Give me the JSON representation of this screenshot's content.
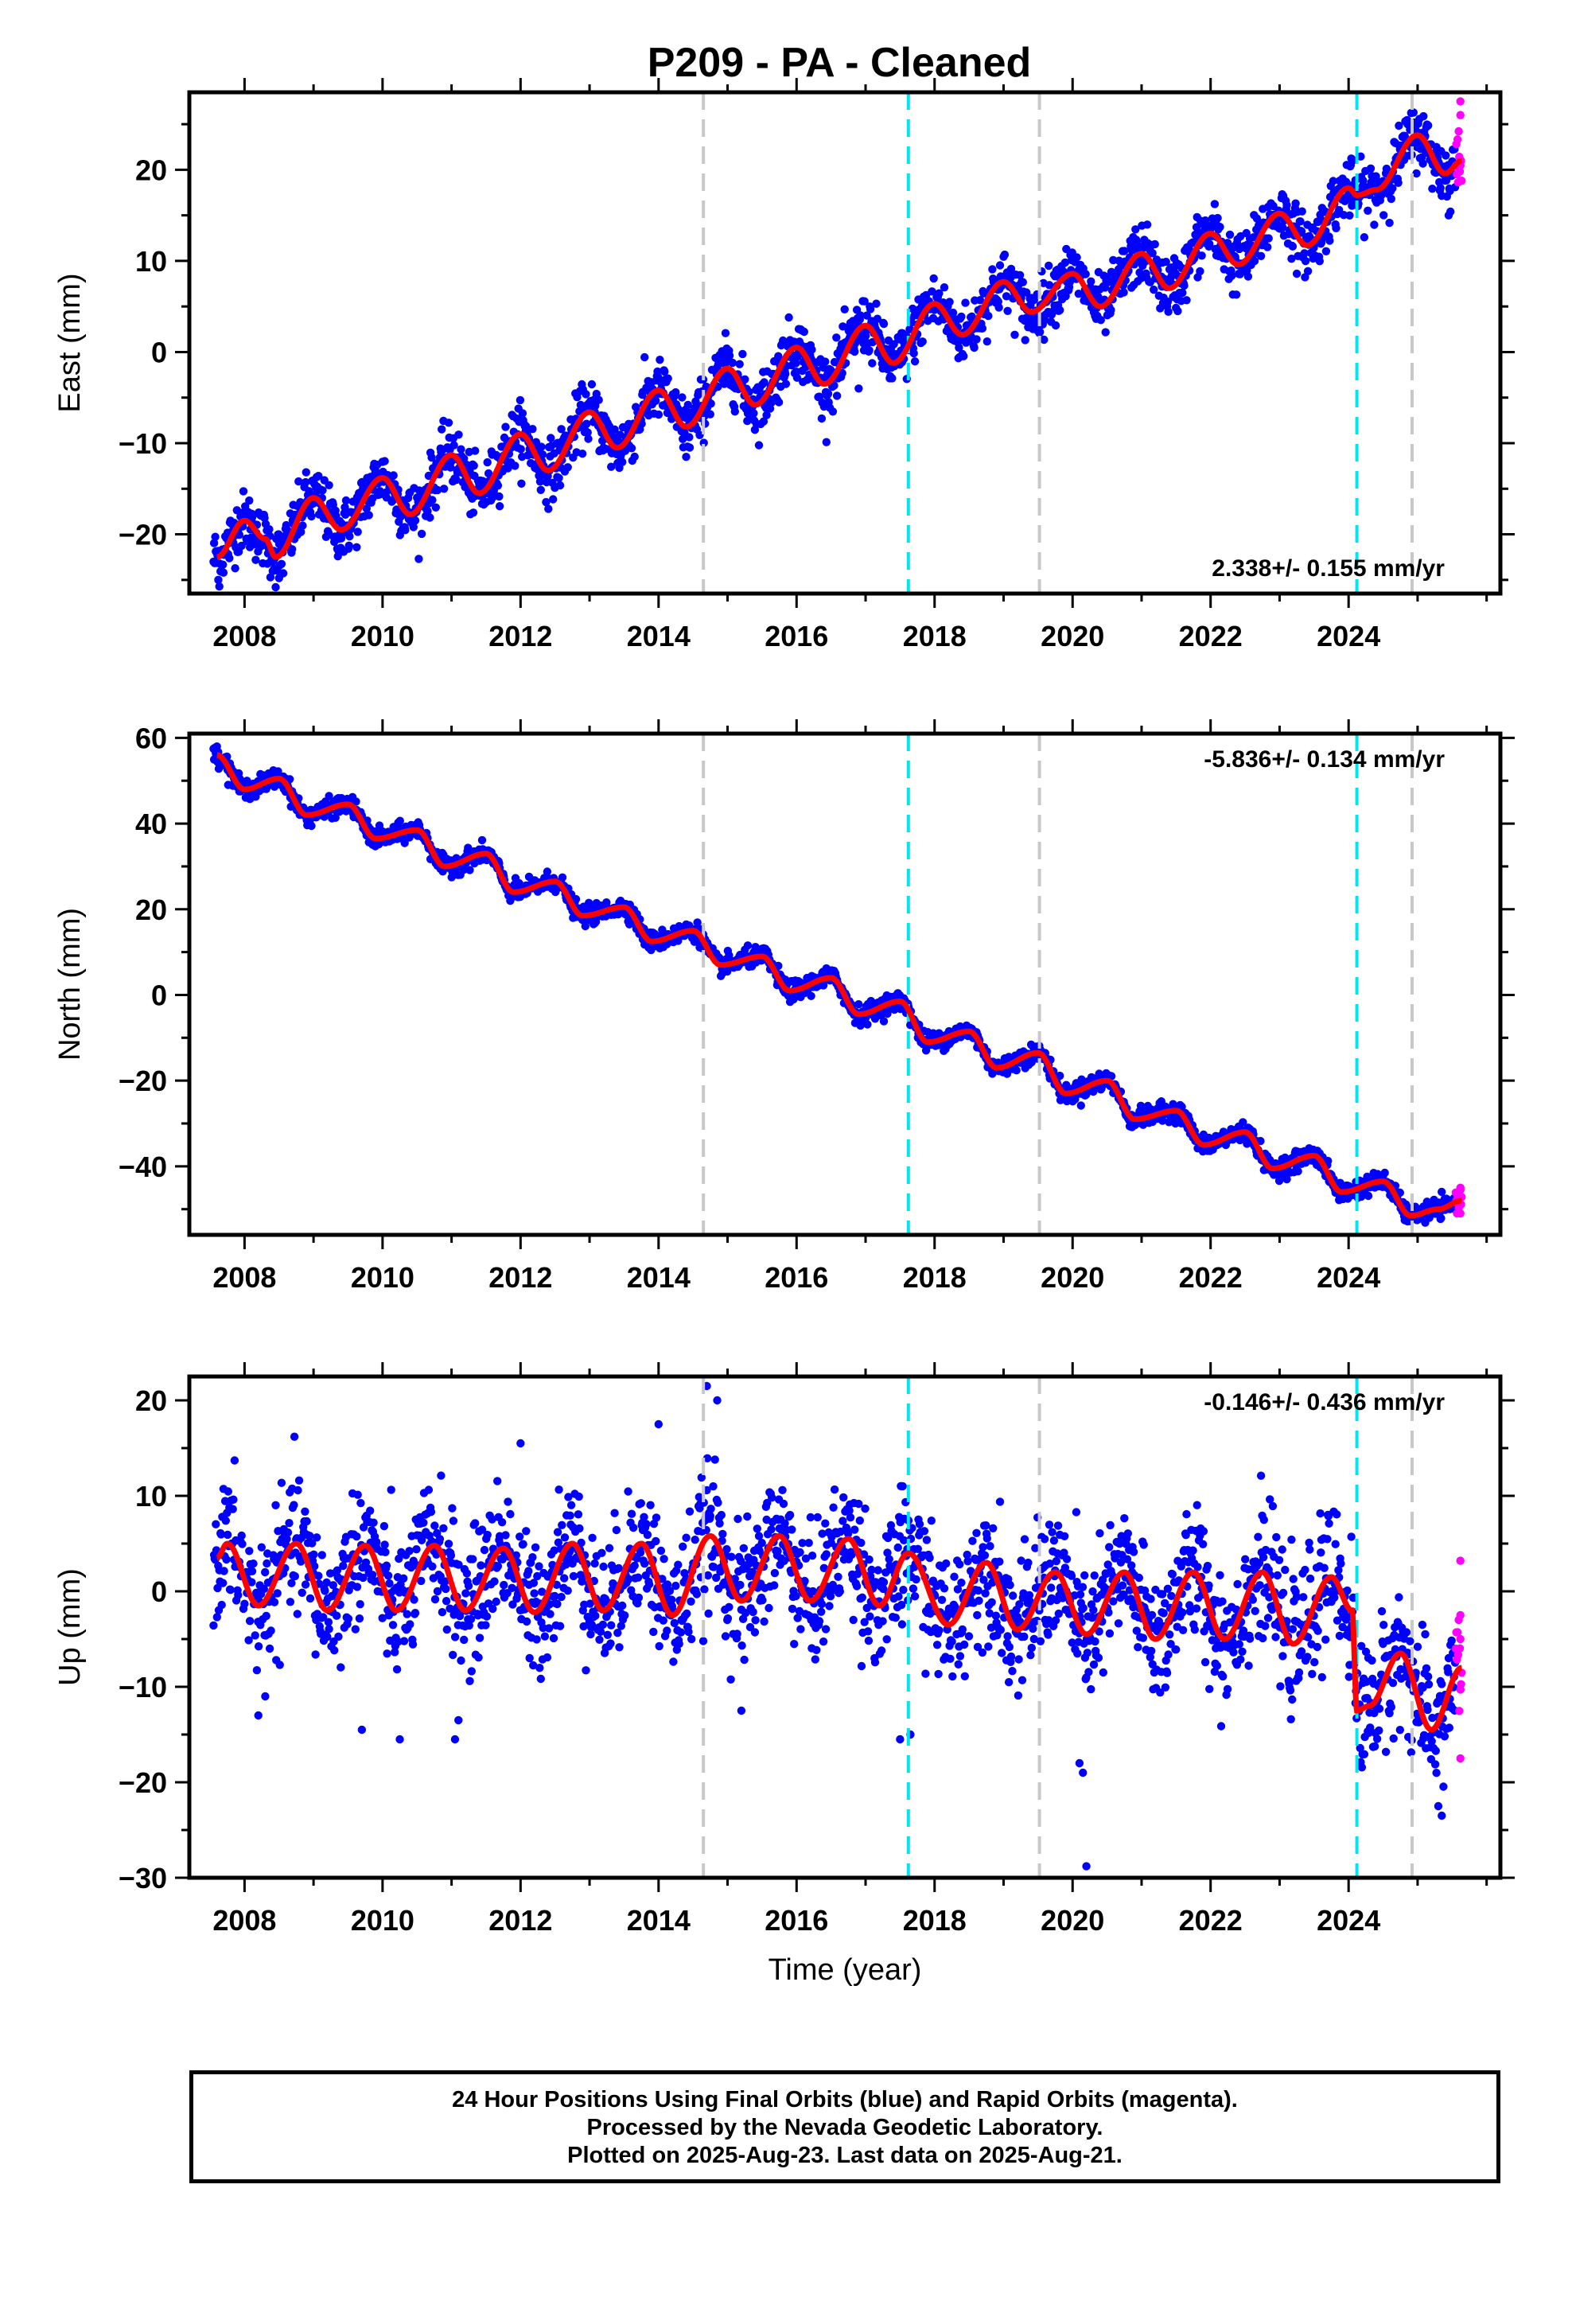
{
  "title": "P209  - PA - Cleaned",
  "colors": {
    "final_orbits": "#0000ff",
    "rapid_orbits": "#ff00ff",
    "model": "#ff0000",
    "event_antenna": "#c8c8c8",
    "event_earthquake": "#00e5ee"
  },
  "footer": {
    "line1": "24 Hour Positions Using Final Orbits (blue) and Rapid Orbits (magenta).",
    "line2": "Processed by the Nevada Geodetic Laboratory.",
    "line3": "Plotted on 2025-Aug-23. Last data on 2025-Aug-21."
  },
  "chart_data": [
    {
      "type": "scatter",
      "component": "east",
      "ylabel": "East (mm)",
      "xlabel": "",
      "rate_label": "2.338+/- 0.155 mm/yr",
      "xlim": [
        2007.2,
        2026.2
      ],
      "ylim": [
        -26.5,
        28.5
      ],
      "x_ticks": [
        2008,
        2010,
        2012,
        2014,
        2016,
        2018,
        2020,
        2022,
        2024
      ],
      "y_ticks": [
        -20,
        -10,
        0,
        10,
        20
      ],
      "data_start": 2007.55,
      "data_end": 2025.64,
      "rapid_start": 2025.55,
      "model": {
        "offset_at_start": -22.3,
        "trend_mm_per_yr": 2.338,
        "annual_amplitude": 2.3,
        "phase_year": 0.62,
        "steps": [
          {
            "year": 2024.12,
            "size": 0
          }
        ]
      },
      "model_curve": [
        [
          2007.6,
          -22.5
        ],
        [
          2008.0,
          -18.5
        ],
        [
          2008.3,
          -20.5
        ],
        [
          2008.45,
          -22.5
        ],
        [
          2009.0,
          -16.0
        ],
        [
          2009.4,
          -19.5
        ],
        [
          2010.0,
          -13.8
        ],
        [
          2010.4,
          -17.8
        ],
        [
          2011.0,
          -11.3
        ],
        [
          2011.4,
          -15.5
        ],
        [
          2012.0,
          -9.0
        ],
        [
          2012.4,
          -13.0
        ],
        [
          2013.0,
          -6.6
        ],
        [
          2013.4,
          -10.5
        ],
        [
          2014.0,
          -4.2
        ],
        [
          2014.4,
          -8.2
        ],
        [
          2015.0,
          -1.8
        ],
        [
          2015.4,
          -5.8
        ],
        [
          2016.0,
          0.5
        ],
        [
          2016.4,
          -3.5
        ],
        [
          2017.0,
          2.9
        ],
        [
          2017.4,
          -1.2
        ],
        [
          2018.0,
          5.3
        ],
        [
          2018.4,
          1.9
        ],
        [
          2019.0,
          7.7
        ],
        [
          2019.4,
          4.4
        ],
        [
          2020.0,
          8.6
        ],
        [
          2020.4,
          5.0
        ],
        [
          2021.0,
          10.8
        ],
        [
          2021.4,
          7.0
        ],
        [
          2022.0,
          13.0
        ],
        [
          2022.4,
          9.6
        ],
        [
          2023.0,
          15.2
        ],
        [
          2023.4,
          11.7
        ],
        [
          2024.0,
          18.0
        ],
        [
          2024.12,
          17.2
        ],
        [
          2024.4,
          17.8
        ],
        [
          2025.0,
          23.8
        ],
        [
          2025.4,
          19.6
        ],
        [
          2025.64,
          21.0
        ]
      ],
      "scatter_sigma": 1.6,
      "outliers": [
        [
          2007.62,
          -25.0
        ],
        [
          2008.5,
          -24.8
        ],
        [
          2014.4,
          -11.5
        ],
        [
          2016.9,
          -4.0
        ],
        [
          2025.45,
          15.0
        ],
        [
          2025.62,
          27.5
        ],
        [
          2025.62,
          26.0
        ]
      ]
    },
    {
      "type": "scatter",
      "component": "north",
      "ylabel": "North (mm)",
      "xlabel": "",
      "rate_label": "-5.836+/- 0.134 mm/yr",
      "xlim": [
        2007.2,
        2026.2
      ],
      "ylim": [
        -56,
        61
      ],
      "x_ticks": [
        2008,
        2010,
        2012,
        2014,
        2016,
        2018,
        2020,
        2022,
        2024
      ],
      "y_ticks": [
        -40,
        -20,
        0,
        20,
        40,
        60
      ],
      "data_start": 2007.55,
      "data_end": 2025.64,
      "rapid_start": 2025.55,
      "model": {
        "offset_at_start": 55.5,
        "trend_mm_per_yr": -5.836,
        "annual_amplitude": 1.8,
        "phase_year": 0.55,
        "steps": [
          {
            "year": 2024.12,
            "size": 0
          }
        ]
      },
      "model_curve": [
        [
          2007.6,
          56.0
        ],
        [
          2008.0,
          48.0
        ],
        [
          2008.5,
          50.5
        ],
        [
          2008.9,
          42.0
        ],
        [
          2009.5,
          44.5
        ],
        [
          2009.9,
          36.5
        ],
        [
          2010.5,
          38.5
        ],
        [
          2010.9,
          30.0
        ],
        [
          2011.5,
          33.0
        ],
        [
          2011.9,
          24.0
        ],
        [
          2012.5,
          26.5
        ],
        [
          2012.9,
          18.5
        ],
        [
          2013.5,
          20.5
        ],
        [
          2013.9,
          12.5
        ],
        [
          2014.5,
          15.0
        ],
        [
          2014.9,
          7.0
        ],
        [
          2015.5,
          9.0
        ],
        [
          2015.9,
          1.0
        ],
        [
          2016.5,
          4.0
        ],
        [
          2016.9,
          -4.5
        ],
        [
          2017.5,
          -1.5
        ],
        [
          2017.9,
          -11.0
        ],
        [
          2018.5,
          -8.5
        ],
        [
          2018.9,
          -17.0
        ],
        [
          2019.5,
          -13.5
        ],
        [
          2019.9,
          -23.0
        ],
        [
          2020.5,
          -20.0
        ],
        [
          2020.9,
          -29.0
        ],
        [
          2021.5,
          -27.0
        ],
        [
          2021.9,
          -35.0
        ],
        [
          2022.5,
          -32.0
        ],
        [
          2022.9,
          -40.5
        ],
        [
          2023.5,
          -37.5
        ],
        [
          2023.9,
          -46.0
        ],
        [
          2024.5,
          -43.5
        ],
        [
          2024.9,
          -51.5
        ],
        [
          2025.3,
          -50.0
        ],
        [
          2025.64,
          -48.0
        ]
      ],
      "scatter_sigma": 1.1,
      "outliers": [
        [
          2007.6,
          58.0
        ],
        [
          2025.62,
          -45.0
        ],
        [
          2025.62,
          -51.0
        ]
      ]
    },
    {
      "type": "scatter",
      "component": "up",
      "ylabel": "Up (mm)",
      "xlabel": "Time (year)",
      "rate_label": "-0.146+/- 0.436 mm/yr",
      "xlim": [
        2007.2,
        2026.2
      ],
      "ylim": [
        -30,
        22.5
      ],
      "x_ticks": [
        2008,
        2010,
        2012,
        2014,
        2016,
        2018,
        2020,
        2022,
        2024
      ],
      "y_ticks": [
        -30,
        -20,
        -10,
        0,
        10,
        20
      ],
      "data_start": 2007.55,
      "data_end": 2025.64,
      "rapid_start": 2025.55,
      "model": {
        "offset_at_start": 2.0,
        "trend_mm_per_yr": -0.146,
        "annual_amplitude": 3.6,
        "phase_year": 0.62,
        "steps": [
          {
            "year": 2024.12,
            "size": -9.5
          }
        ]
      },
      "model_curve": [
        [
          2007.6,
          3.5
        ],
        [
          2007.75,
          5.0
        ],
        [
          2008.2,
          -1.5
        ],
        [
          2008.75,
          5.0
        ],
        [
          2009.2,
          -2.0
        ],
        [
          2009.75,
          4.8
        ],
        [
          2010.2,
          -2.0
        ],
        [
          2010.75,
          4.8
        ],
        [
          2011.2,
          -2.0
        ],
        [
          2011.75,
          4.5
        ],
        [
          2012.2,
          -2.2
        ],
        [
          2012.75,
          5.0
        ],
        [
          2013.2,
          -2.0
        ],
        [
          2013.75,
          5.0
        ],
        [
          2014.2,
          -2.5
        ],
        [
          2014.75,
          5.8
        ],
        [
          2015.2,
          -1.0
        ],
        [
          2015.75,
          5.8
        ],
        [
          2016.2,
          -1.0
        ],
        [
          2016.75,
          5.5
        ],
        [
          2017.2,
          -1.5
        ],
        [
          2017.62,
          4.0
        ],
        [
          2018.2,
          -3.5
        ],
        [
          2018.75,
          3.0
        ],
        [
          2019.2,
          -4.0
        ],
        [
          2019.75,
          2.0
        ],
        [
          2020.2,
          -4.5
        ],
        [
          2020.75,
          2.0
        ],
        [
          2021.2,
          -5.0
        ],
        [
          2021.75,
          2.0
        ],
        [
          2022.2,
          -5.0
        ],
        [
          2022.75,
          2.0
        ],
        [
          2023.2,
          -5.5
        ],
        [
          2023.75,
          1.5
        ],
        [
          2024.05,
          -2.0
        ],
        [
          2024.12,
          -12.5
        ],
        [
          2024.3,
          -12.0
        ],
        [
          2024.75,
          -6.5
        ],
        [
          2025.2,
          -14.5
        ],
        [
          2025.64,
          -8.0
        ]
      ],
      "scatter_sigma": 3.4,
      "outliers": [
        [
          2008.2,
          -13.0
        ],
        [
          2008.3,
          -11.0
        ],
        [
          2009.7,
          -14.5
        ],
        [
          2010.25,
          -15.5
        ],
        [
          2011.05,
          -15.5
        ],
        [
          2011.1,
          -13.5
        ],
        [
          2014.7,
          21.5
        ],
        [
          2014.85,
          20.0
        ],
        [
          2014.0,
          17.5
        ],
        [
          2012.0,
          15.5
        ],
        [
          2015.2,
          -12.5
        ],
        [
          2017.65,
          -15.0
        ],
        [
          2017.5,
          -15.5
        ],
        [
          2020.1,
          -18.0
        ],
        [
          2020.15,
          -19.0
        ],
        [
          2020.2,
          -28.8
        ],
        [
          2025.35,
          -23.5
        ],
        [
          2025.3,
          -22.5
        ],
        [
          2025.62,
          3.2
        ],
        [
          2025.62,
          -5.0
        ],
        [
          2025.62,
          -17.5
        ],
        [
          2025.62,
          -2.5
        ]
      ]
    }
  ],
  "events": [
    {
      "year": 2014.65,
      "kind": "antenna"
    },
    {
      "year": 2017.62,
      "kind": "earthquake"
    },
    {
      "year": 2019.52,
      "kind": "antenna"
    },
    {
      "year": 2024.12,
      "kind": "earthquake"
    },
    {
      "year": 2024.92,
      "kind": "antenna"
    }
  ]
}
